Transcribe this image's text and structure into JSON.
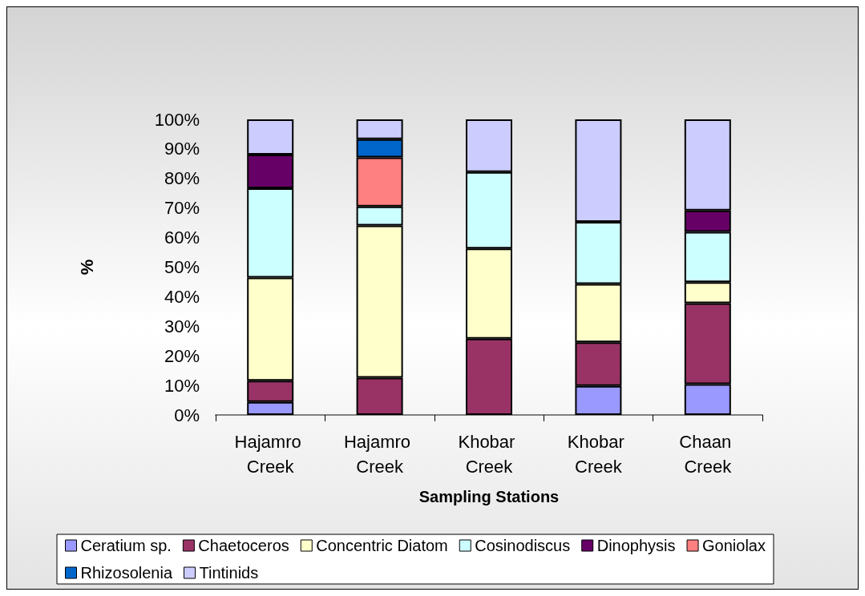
{
  "chart_data": {
    "type": "bar",
    "stacked": true,
    "xlabel": "Sampling Stations",
    "ylabel": "%",
    "categories": [
      "Hajamro Creek",
      "Hajamro Creek",
      "Khobar Creek",
      "Khobar Creek",
      "Chaan Creek"
    ],
    "series": [
      {
        "name": "Ceratium sp.",
        "color": "#9999ff",
        "values": [
          4.4,
          null,
          null,
          9.8,
          10.4
        ]
      },
      {
        "name": "Chaetoceros",
        "color": "#993366",
        "values": [
          7.2,
          12.6,
          25.8,
          14.8,
          27.4
        ]
      },
      {
        "name": "Concentric Diatom",
        "color": "#ffffcc",
        "values": [
          34.9,
          51.5,
          30.5,
          19.7,
          7.1
        ]
      },
      {
        "name": "Cosinodiscus",
        "color": "#ccffff",
        "values": [
          30.2,
          6.4,
          25.9,
          21.0,
          17.0
        ]
      },
      {
        "name": "Dinophysis",
        "color": "#660066",
        "values": [
          11.4,
          null,
          null,
          null,
          7.3
        ]
      },
      {
        "name": "Goniolax",
        "color": "#ff8080",
        "values": [
          null,
          16.6,
          null,
          null,
          null
        ]
      },
      {
        "name": "Rhizosolenia",
        "color": "#0066cc",
        "values": [
          null,
          6.2,
          null,
          null,
          null
        ]
      },
      {
        "name": "Tintinids",
        "color": "#ccccff",
        "values": [
          11.9,
          6.7,
          17.8,
          34.7,
          30.8
        ]
      }
    ],
    "ylim": [
      0,
      100
    ],
    "yticks": [
      {
        "value": 0,
        "label": "0%"
      },
      {
        "value": 10,
        "label": "10%"
      },
      {
        "value": 20,
        "label": "20%"
      },
      {
        "value": 30,
        "label": "30%"
      },
      {
        "value": 40,
        "label": "40%"
      },
      {
        "value": 50,
        "label": "50%"
      },
      {
        "value": 60,
        "label": "60%"
      },
      {
        "value": 70,
        "label": "70%"
      },
      {
        "value": 80,
        "label": "80%"
      },
      {
        "value": 90,
        "label": "90%"
      },
      {
        "value": 100,
        "label": "100%"
      }
    ],
    "grid": false,
    "legend": "bottom"
  }
}
